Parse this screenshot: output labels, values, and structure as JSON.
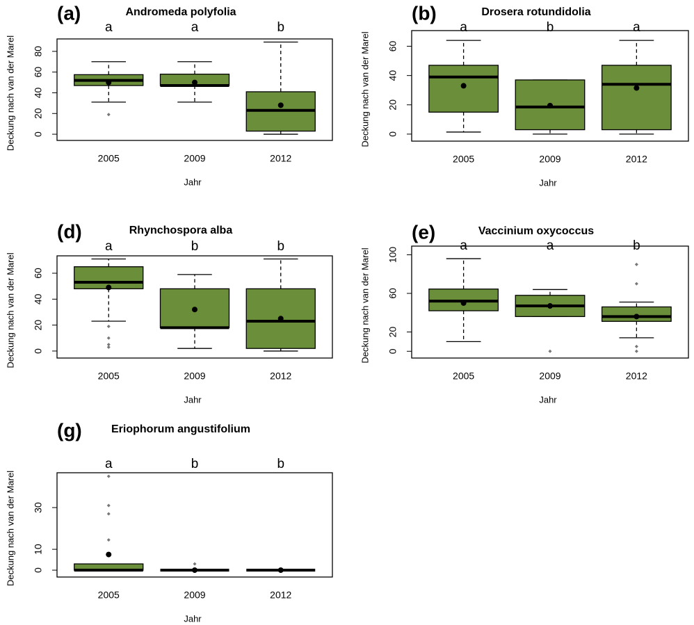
{
  "chart_data": [
    {
      "type": "box",
      "panel_label": "(a)",
      "title": "Andromeda polyfolia",
      "xlabel": "Jahr",
      "ylabel": "Deckung nach van der Marel",
      "categories": [
        "2005",
        "2009",
        "2012"
      ],
      "letters": [
        "a",
        "a",
        "b"
      ],
      "color": "#6b8e3a",
      "ylim": [
        -6,
        92
      ],
      "yticks": [
        0,
        20,
        40,
        60,
        80
      ],
      "boxes": [
        {
          "whisker_low": 31,
          "q1": 47,
          "median": 52,
          "q3": 57.5,
          "whisker_high": 70,
          "mean": 50,
          "outliers": [
            19
          ]
        },
        {
          "whisker_low": 31,
          "q1": 47,
          "median": 47,
          "q3": 58,
          "whisker_high": 70,
          "mean": 50,
          "outliers": []
        },
        {
          "whisker_low": 0,
          "q1": 3,
          "median": 23,
          "q3": 41,
          "whisker_high": 89,
          "mean": 28,
          "outliers": []
        }
      ]
    },
    {
      "type": "box",
      "panel_label": "(b)",
      "title": "Drosera rotundidolia",
      "xlabel": "Jahr",
      "ylabel": "Deckung nach van der Marel",
      "categories": [
        "2005",
        "2009",
        "2012"
      ],
      "letters": [
        "a",
        "b",
        "a"
      ],
      "color": "#6b8e3a",
      "ylim": [
        -4.8,
        70.7
      ],
      "yticks": [
        0,
        20,
        40,
        60
      ],
      "boxes": [
        {
          "whisker_low": 1.4,
          "q1": 15,
          "median": 39,
          "q3": 47,
          "whisker_high": 64,
          "mean": 33,
          "outliers": []
        },
        {
          "whisker_low": 0,
          "q1": 3,
          "median": 18.5,
          "q3": 37,
          "whisker_high": 37,
          "mean": 19.5,
          "outliers": []
        },
        {
          "whisker_low": 0,
          "q1": 3,
          "median": 34,
          "q3": 47,
          "whisker_high": 64,
          "mean": 31.5,
          "outliers": []
        }
      ]
    },
    {
      "type": "box",
      "panel_label": "(d)",
      "title": "Rhynchospora alba",
      "xlabel": "Jahr",
      "ylabel": "Deckung nach van der Marel",
      "categories": [
        "2005",
        "2009",
        "2012"
      ],
      "letters": [
        "a",
        "b",
        "b"
      ],
      "color": "#6b8e3a",
      "ylim": [
        -5.4,
        73.4
      ],
      "yticks": [
        0,
        20,
        40,
        60
      ],
      "boxes": [
        {
          "whisker_low": 23,
          "q1": 48,
          "median": 53,
          "q3": 65,
          "whisker_high": 71,
          "mean": 49,
          "outliers": [
            19,
            10,
            5,
            3
          ]
        },
        {
          "whisker_low": 2,
          "q1": 18,
          "median": 18,
          "q3": 48,
          "whisker_high": 59,
          "mean": 32,
          "outliers": []
        },
        {
          "whisker_low": 0,
          "q1": 2,
          "median": 23,
          "q3": 48,
          "whisker_high": 71,
          "mean": 25,
          "outliers": []
        }
      ]
    },
    {
      "type": "box",
      "panel_label": "(e)",
      "title": "Vaccinium oxycoccus",
      "xlabel": "Jahr",
      "ylabel": "Deckung nach van der Marel",
      "categories": [
        "2005",
        "2009",
        "2012"
      ],
      "letters": [
        "a",
        "a",
        "b"
      ],
      "color": "#6b8e3a",
      "ylim": [
        -7,
        109
      ],
      "yticks": [
        0,
        20,
        60,
        100
      ],
      "boxes": [
        {
          "whisker_low": 10,
          "q1": 42,
          "median": 52,
          "q3": 64.5,
          "whisker_high": 96,
          "mean": 50,
          "outliers": []
        },
        {
          "whisker_low": 36,
          "q1": 36,
          "median": 47,
          "q3": 58,
          "whisker_high": 64,
          "mean": 47,
          "outliers": [
            0
          ]
        },
        {
          "whisker_low": 14,
          "q1": 31,
          "median": 36,
          "q3": 46,
          "whisker_high": 51,
          "mean": 36,
          "outliers": [
            90,
            70,
            5,
            0
          ]
        }
      ]
    },
    {
      "type": "box",
      "panel_label": "(g)",
      "title": "Eriophorum angustifolium",
      "xlabel": "Jahr",
      "ylabel": "Deckung nach van der Marel",
      "categories": [
        "2005",
        "2009",
        "2012"
      ],
      "letters": [
        "a",
        "b",
        "b"
      ],
      "color": "#6b8e3a",
      "ylim": [
        -3.3,
        46.7
      ],
      "yticks": [
        0,
        10,
        30
      ],
      "boxes": [
        {
          "whisker_low": 0,
          "q1": 0,
          "median": 0,
          "q3": 3,
          "whisker_high": 3,
          "mean": 7.5,
          "outliers": [
            45,
            31,
            27,
            14.5
          ]
        },
        {
          "whisker_low": 0,
          "q1": 0,
          "median": 0,
          "q3": 0,
          "whisker_high": 0,
          "mean": 0,
          "outliers": [
            3
          ]
        },
        {
          "whisker_low": 0,
          "q1": 0,
          "median": 0,
          "q3": 0,
          "whisker_high": 0,
          "mean": 0,
          "outliers": []
        }
      ]
    }
  ]
}
